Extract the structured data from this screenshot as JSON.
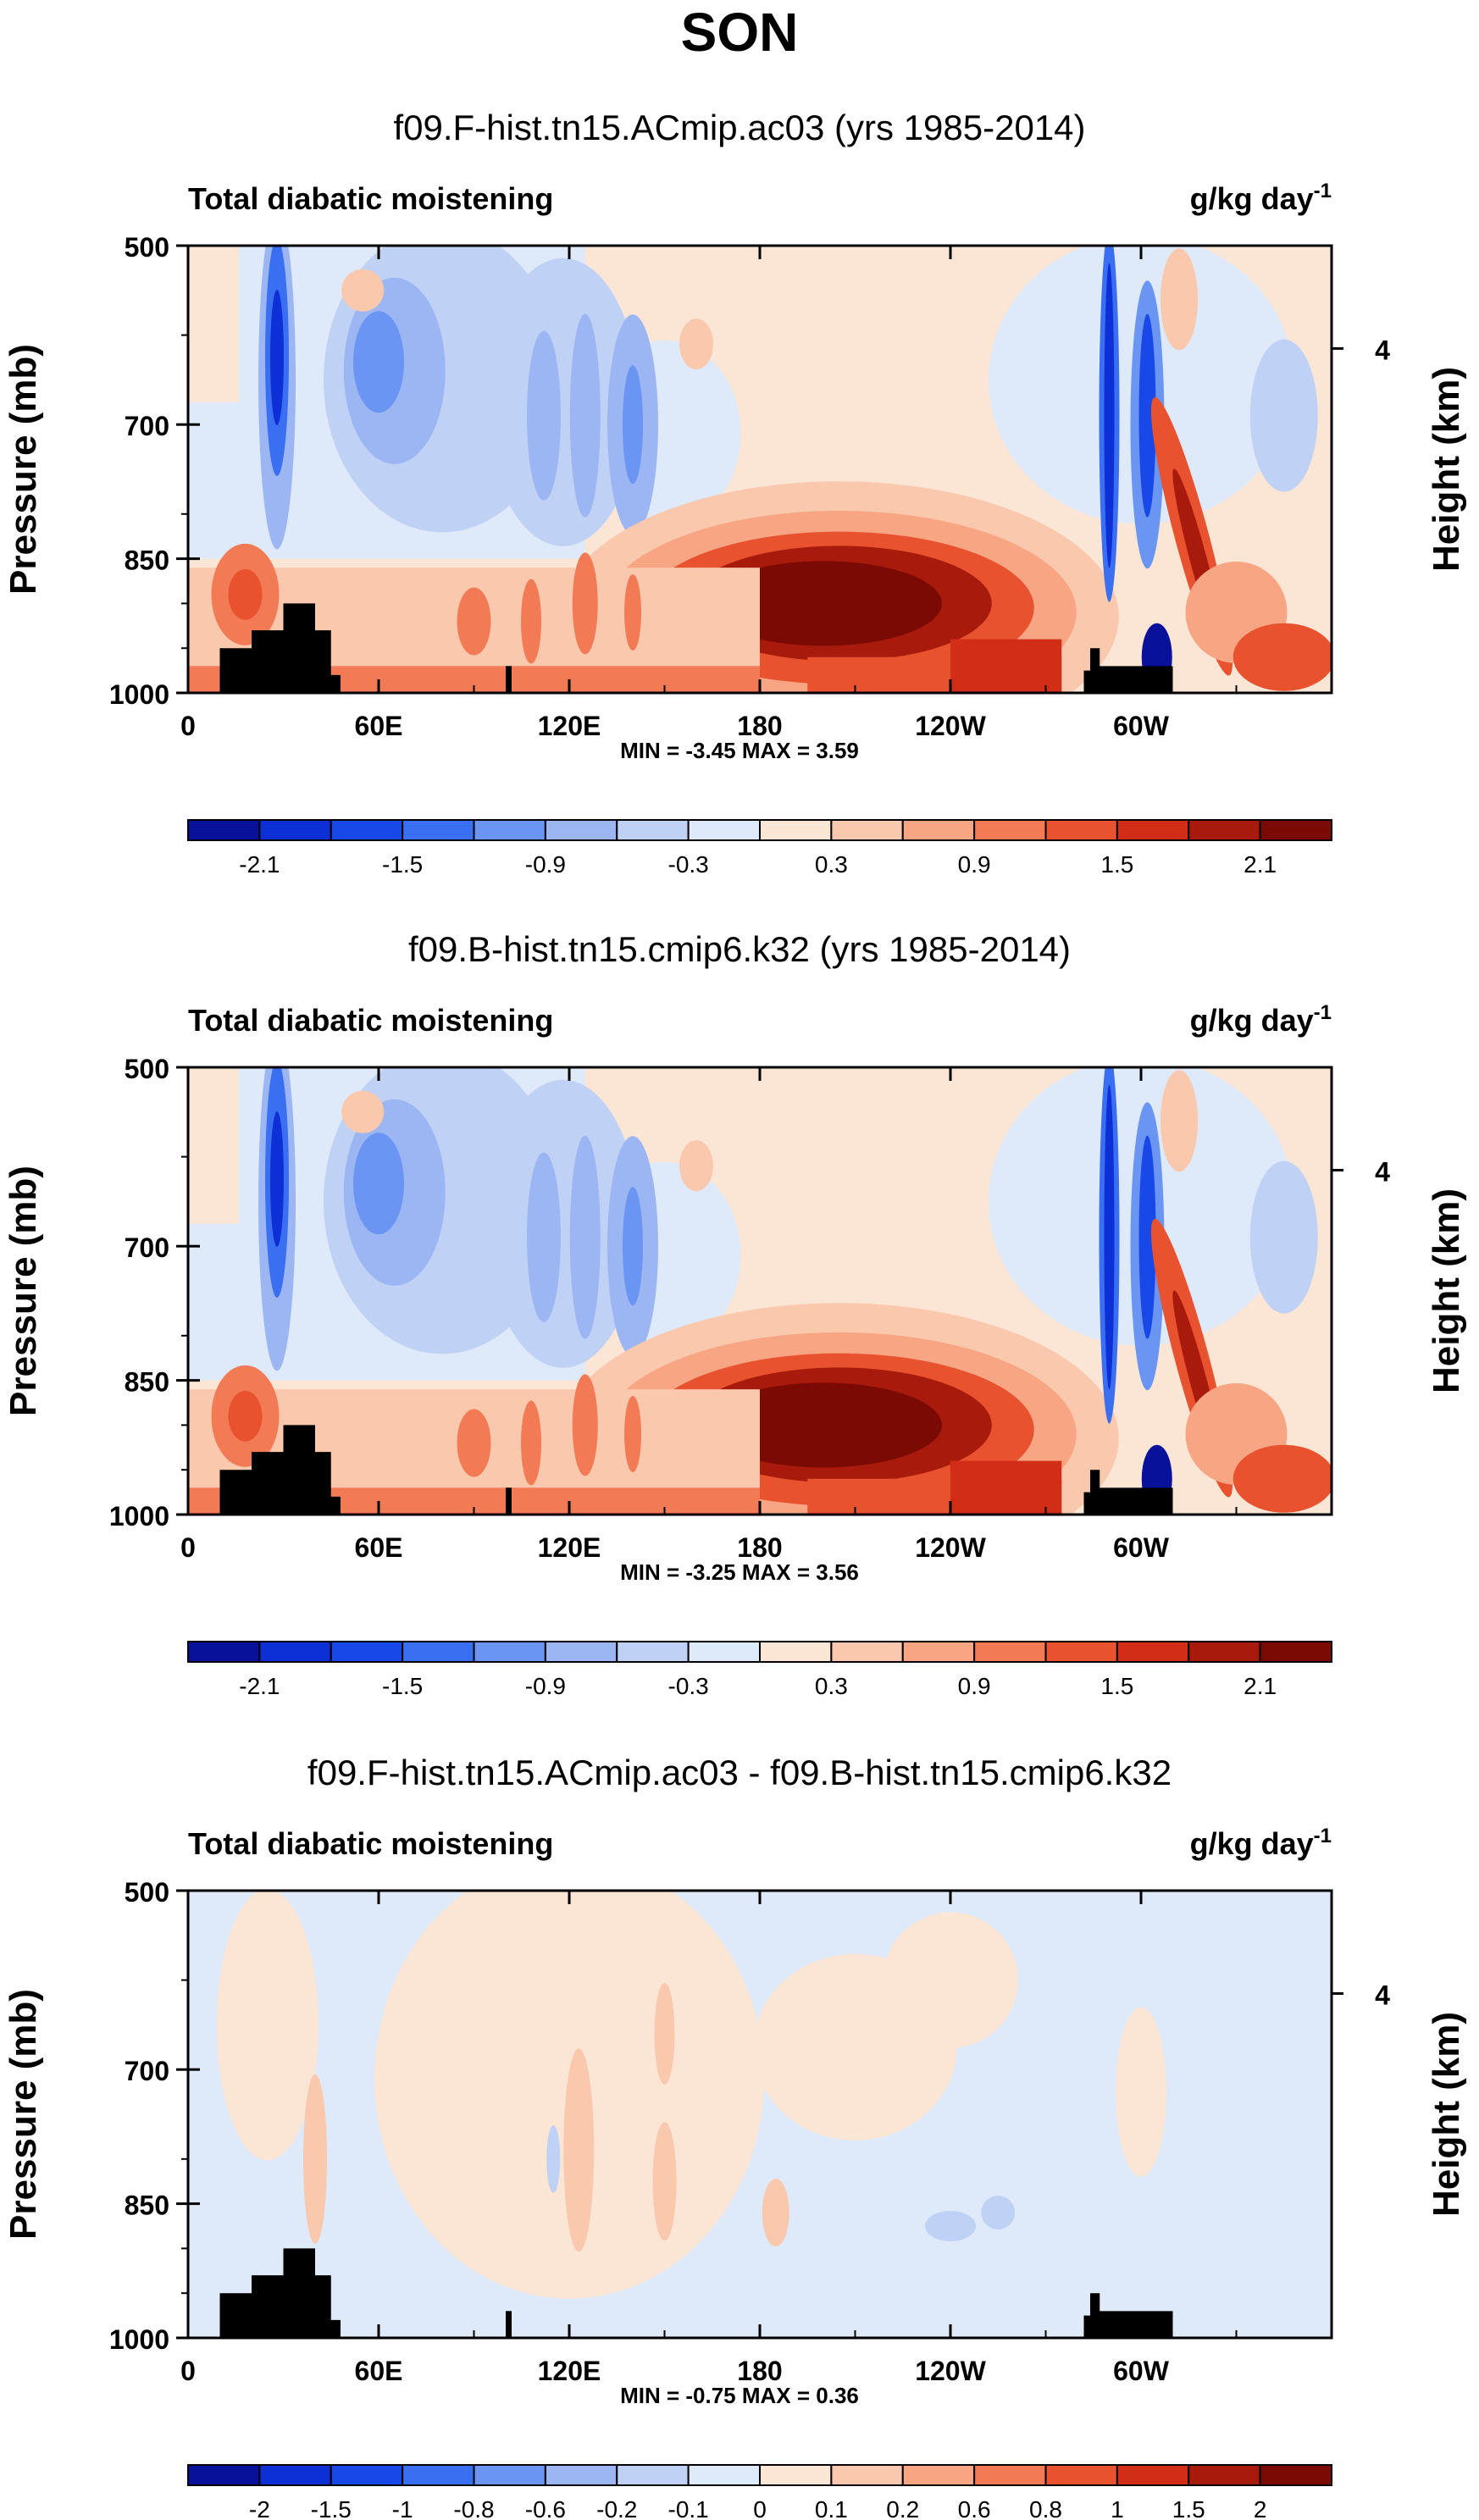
{
  "figure_title": "SON",
  "chart_data": [
    {
      "type": "heatmap",
      "title": "f09.F-hist.tn15.ACmip.ac03 (yrs 1985-2014)",
      "left_string": "Total diabatic moistening",
      "units_main": "g/kg day",
      "units_sup": "-1",
      "ylabel": "Pressure (mb)",
      "ylabel_right": "Height (km)",
      "y_ticks": [
        "500",
        "700",
        "850",
        "1000"
      ],
      "y_right_ticks": [
        "4"
      ],
      "x_ticks": [
        "0",
        "60E",
        "120E",
        "180",
        "120W",
        "60W"
      ],
      "xlim": [
        0,
        360
      ],
      "ylim": [
        1000,
        500
      ],
      "stats_text": "MIN = -3.45  MAX =  3.59",
      "min": -3.45,
      "max": 3.59,
      "colorbar_labels": [
        "-2.1",
        "-1.5",
        "-0.9",
        "-0.3",
        "0.3",
        "0.9",
        "1.5",
        "2.1"
      ],
      "colorbar_label_boxes": [
        1,
        3,
        5,
        7,
        9,
        11,
        13,
        15
      ],
      "colorbar_colors": [
        "#08119a",
        "#0c2fd6",
        "#1848e8",
        "#3a6ff2",
        "#6b95f2",
        "#9bb6f2",
        "#bfd1f5",
        "#dee9fa",
        "#fbe6d6",
        "#fac8ad",
        "#f7a583",
        "#f27b56",
        "#e8522f",
        "#d12d17",
        "#a81a0b",
        "#7a0a03"
      ],
      "levels": [
        -2.1,
        -1.8,
        -1.5,
        -1.2,
        -0.9,
        -0.6,
        -0.3,
        0,
        0.3,
        0.6,
        0.9,
        1.2,
        1.5,
        1.8,
        2.1
      ]
    },
    {
      "type": "heatmap",
      "title": "f09.B-hist.tn15.cmip6.k32 (yrs 1985-2014)",
      "left_string": "Total diabatic moistening",
      "units_main": "g/kg day",
      "units_sup": "-1",
      "ylabel": "Pressure (mb)",
      "ylabel_right": "Height (km)",
      "y_ticks": [
        "500",
        "700",
        "850",
        "1000"
      ],
      "y_right_ticks": [
        "4"
      ],
      "x_ticks": [
        "0",
        "60E",
        "120E",
        "180",
        "120W",
        "60W"
      ],
      "xlim": [
        0,
        360
      ],
      "ylim": [
        1000,
        500
      ],
      "stats_text": "MIN = -3.25  MAX =  3.56",
      "min": -3.25,
      "max": 3.56,
      "colorbar_labels": [
        "-2.1",
        "-1.5",
        "-0.9",
        "-0.3",
        "0.3",
        "0.9",
        "1.5",
        "2.1"
      ],
      "colorbar_label_boxes": [
        1,
        3,
        5,
        7,
        9,
        11,
        13,
        15
      ],
      "colorbar_colors": [
        "#08119a",
        "#0c2fd6",
        "#1848e8",
        "#3a6ff2",
        "#6b95f2",
        "#9bb6f2",
        "#bfd1f5",
        "#dee9fa",
        "#fbe6d6",
        "#fac8ad",
        "#f7a583",
        "#f27b56",
        "#e8522f",
        "#d12d17",
        "#a81a0b",
        "#7a0a03"
      ],
      "levels": [
        -2.1,
        -1.8,
        -1.5,
        -1.2,
        -0.9,
        -0.6,
        -0.3,
        0,
        0.3,
        0.6,
        0.9,
        1.2,
        1.5,
        1.8,
        2.1
      ]
    },
    {
      "type": "heatmap",
      "title": "f09.F-hist.tn15.ACmip.ac03 - f09.B-hist.tn15.cmip6.k32",
      "left_string": "Total diabatic moistening",
      "units_main": "g/kg day",
      "units_sup": "-1",
      "ylabel": "Pressure (mb)",
      "ylabel_right": "Height (km)",
      "y_ticks": [
        "500",
        "700",
        "850",
        "1000"
      ],
      "y_right_ticks": [
        "4"
      ],
      "x_ticks": [
        "0",
        "60E",
        "120E",
        "180",
        "120W",
        "60W"
      ],
      "xlim": [
        0,
        360
      ],
      "ylim": [
        1000,
        500
      ],
      "stats_text": "MIN = -0.75  MAX =  0.36",
      "min": -0.75,
      "max": 0.36,
      "colorbar_labels": [
        "-2",
        "-1.5",
        "-1",
        "-0.8",
        "-0.6",
        "-0.2",
        "-0.1",
        "0",
        "0.1",
        "0.2",
        "0.6",
        "0.8",
        "1",
        "1.5",
        "2"
      ],
      "colorbar_label_boxes": [
        1,
        2,
        3,
        4,
        5,
        6,
        7,
        8,
        9,
        10,
        11,
        12,
        13,
        14,
        15
      ],
      "colorbar_colors": [
        "#08119a",
        "#0c2fd6",
        "#1848e8",
        "#3a6ff2",
        "#6b95f2",
        "#9bb6f2",
        "#bfd1f5",
        "#dee9fa",
        "#fbe6d6",
        "#fac8ad",
        "#f7a583",
        "#f27b56",
        "#e8522f",
        "#d12d17",
        "#a81a0b",
        "#7a0a03"
      ],
      "levels": [
        -2,
        -1.5,
        -1,
        -0.8,
        -0.6,
        -0.2,
        -0.1,
        0,
        0.1,
        0.2,
        0.6,
        0.8,
        1,
        1.5,
        2
      ]
    }
  ]
}
